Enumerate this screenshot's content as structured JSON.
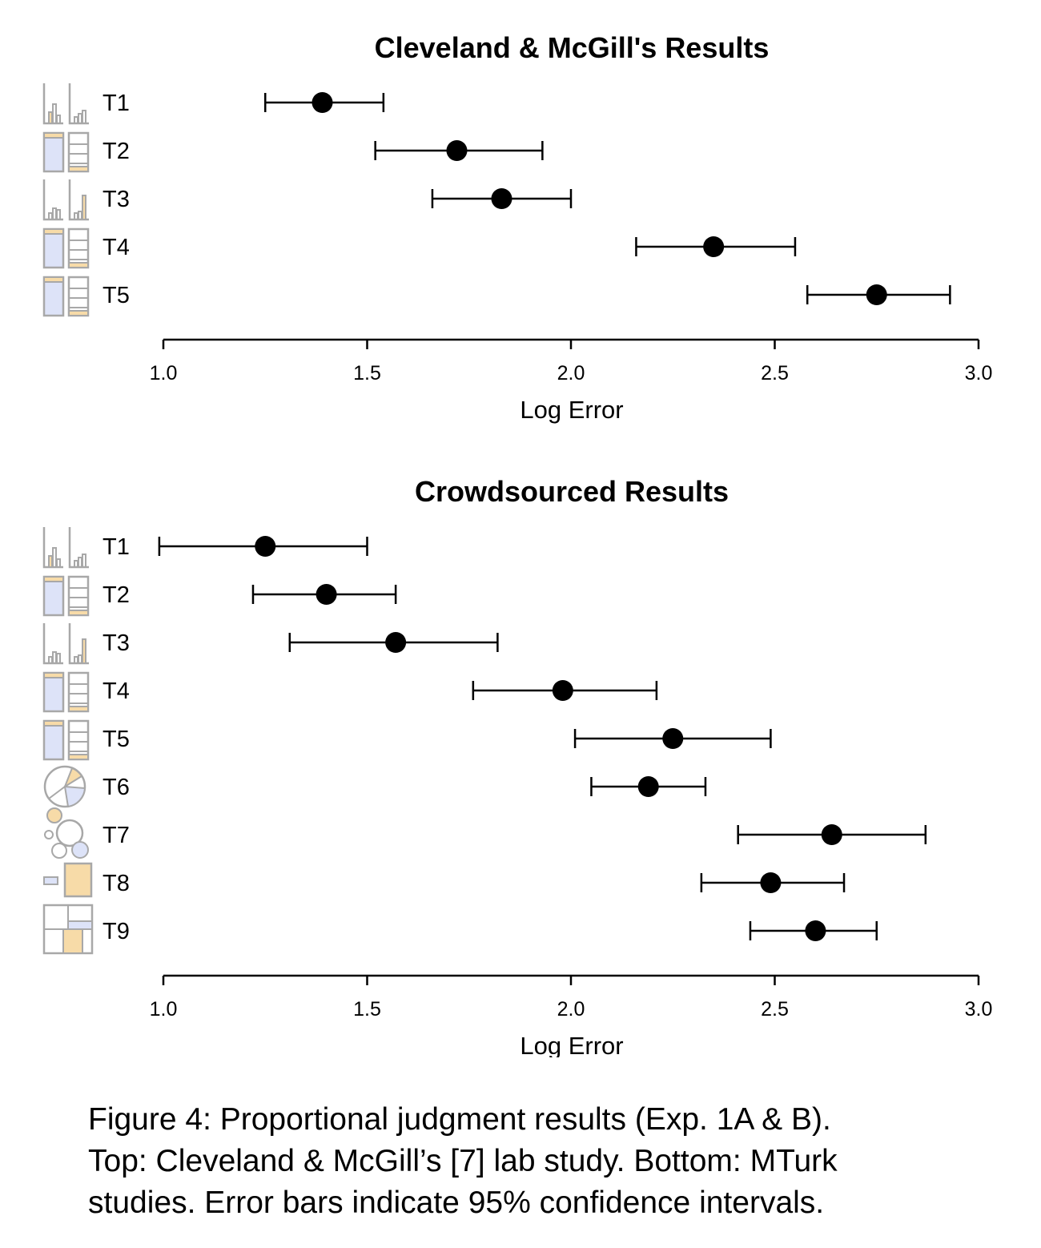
{
  "chart_data": [
    {
      "type": "errorbar",
      "title": "Cleveland & McGill's Results",
      "xlabel": "Log Error",
      "xlim": [
        1.0,
        3.0
      ],
      "xticks": [
        "1.0",
        "1.5",
        "2.0",
        "2.5",
        "3.0"
      ],
      "grid": false,
      "rows": [
        {
          "label": "T1",
          "icon": "grouped-bar-chart-icon",
          "mean": 1.39,
          "lo": 1.25,
          "hi": 1.54
        },
        {
          "label": "T2",
          "icon": "stacked-bar-chart-icon",
          "mean": 1.72,
          "lo": 1.52,
          "hi": 1.93
        },
        {
          "label": "T3",
          "icon": "divided-bar-chart-icon",
          "mean": 1.83,
          "lo": 1.66,
          "hi": 2.0
        },
        {
          "label": "T4",
          "icon": "stacked-bar-chart-icon",
          "mean": 2.35,
          "lo": 2.16,
          "hi": 2.55
        },
        {
          "label": "T5",
          "icon": "stacked-bar-chart-icon",
          "mean": 2.75,
          "lo": 2.58,
          "hi": 2.93
        }
      ]
    },
    {
      "type": "errorbar",
      "title": "Crowdsourced Results",
      "xlabel": "Log Error",
      "xlim": [
        1.0,
        3.0
      ],
      "xticks": [
        "1.0",
        "1.5",
        "2.0",
        "2.5",
        "3.0"
      ],
      "grid": false,
      "rows": [
        {
          "label": "T1",
          "icon": "grouped-bar-chart-icon",
          "mean": 1.25,
          "lo": 0.99,
          "hi": 1.5
        },
        {
          "label": "T2",
          "icon": "stacked-bar-chart-icon",
          "mean": 1.4,
          "lo": 1.22,
          "hi": 1.57
        },
        {
          "label": "T3",
          "icon": "divided-bar-chart-icon",
          "mean": 1.57,
          "lo": 1.31,
          "hi": 1.82
        },
        {
          "label": "T4",
          "icon": "stacked-bar-chart-icon",
          "mean": 1.98,
          "lo": 1.76,
          "hi": 2.21
        },
        {
          "label": "T5",
          "icon": "stacked-bar-chart-icon",
          "mean": 2.25,
          "lo": 2.01,
          "hi": 2.49
        },
        {
          "label": "T6",
          "icon": "pie-chart-icon",
          "mean": 2.19,
          "lo": 2.05,
          "hi": 2.33
        },
        {
          "label": "T7",
          "icon": "bubble-chart-icon",
          "mean": 2.64,
          "lo": 2.41,
          "hi": 2.87
        },
        {
          "label": "T8",
          "icon": "area-comparison-icon",
          "mean": 2.49,
          "lo": 2.32,
          "hi": 2.67
        },
        {
          "label": "T9",
          "icon": "treemap-icon",
          "mean": 2.6,
          "lo": 2.44,
          "hi": 2.75
        }
      ]
    }
  ],
  "caption": {
    "line1": "Figure 4: Proportional judgment results (Exp. 1A & B).",
    "line2": "Top: Cleveland & McGill’s [7] lab study. Bottom: MTurk",
    "line3": "studies. Error bars indicate 95% confidence intervals."
  },
  "colors": {
    "icon_outline": "#a8a8a8",
    "icon_orange": "#f7dba8",
    "icon_blue": "#dde3f8",
    "mark": "#000000"
  }
}
